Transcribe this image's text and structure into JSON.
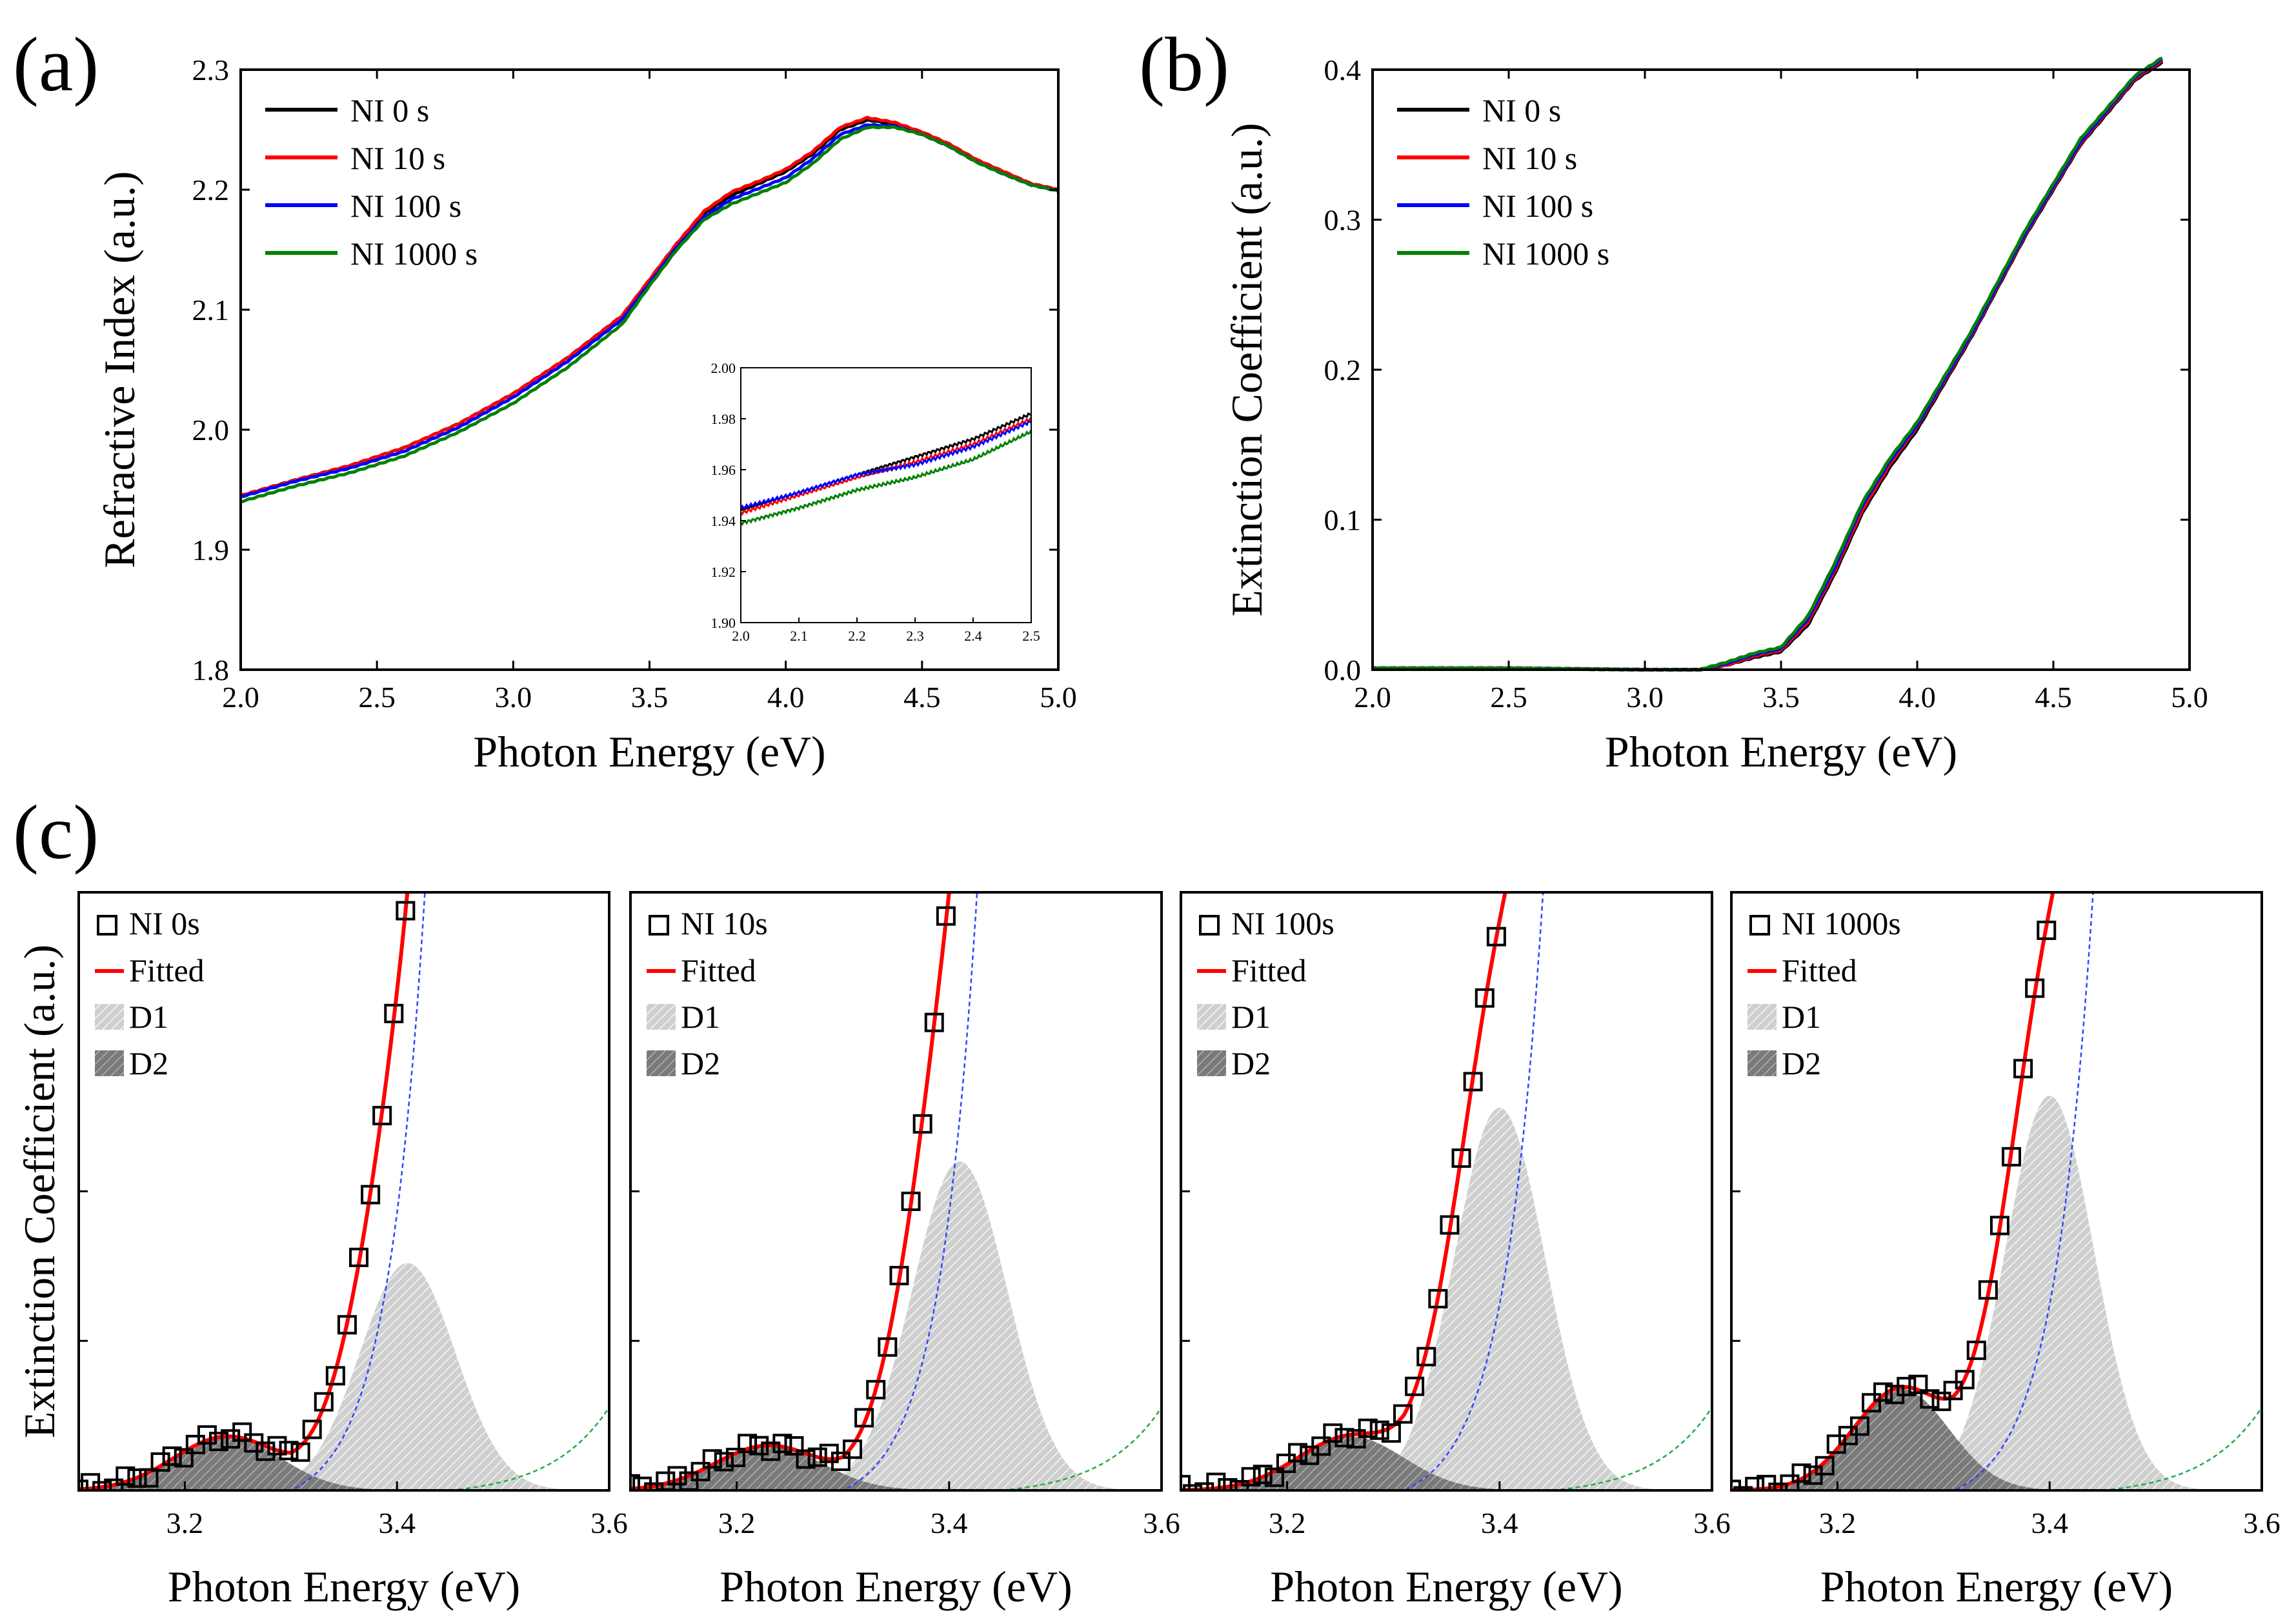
{
  "chart_data": [
    {
      "panel": "(a)",
      "type": "line",
      "xlabel": "Photon Energy (eV)",
      "ylabel": "Refractive Index (a.u.)",
      "xlim": [
        2.0,
        5.0
      ],
      "ylim": [
        1.8,
        2.3
      ],
      "xticks": [
        "2.0",
        "2.5",
        "3.0",
        "3.5",
        "4.0",
        "4.5",
        "5.0"
      ],
      "yticks": [
        "1.8",
        "1.9",
        "2.0",
        "2.1",
        "2.2",
        "2.3"
      ],
      "legend_position": "top-left",
      "series": [
        {
          "name": "NI 0 s",
          "color": "#000000",
          "x": [
            2.0,
            2.2,
            2.4,
            2.6,
            2.8,
            3.0,
            3.2,
            3.4,
            3.5,
            3.6,
            3.7,
            3.8,
            3.9,
            4.0,
            4.1,
            4.2,
            4.3,
            4.4,
            4.5,
            4.6,
            4.7,
            4.8,
            4.9,
            5.0
          ],
          "y": [
            1.945,
            1.958,
            1.97,
            1.985,
            2.005,
            2.03,
            2.06,
            2.095,
            2.125,
            2.155,
            2.18,
            2.195,
            2.205,
            2.215,
            2.23,
            2.25,
            2.258,
            2.255,
            2.248,
            2.238,
            2.225,
            2.215,
            2.205,
            2.2
          ]
        },
        {
          "name": "NI 10 s",
          "color": "#ff0000",
          "x": [
            2.0,
            2.2,
            2.4,
            2.6,
            2.8,
            3.0,
            3.2,
            3.4,
            3.5,
            3.6,
            3.7,
            3.8,
            3.9,
            4.0,
            4.1,
            4.2,
            4.3,
            4.4,
            4.5,
            4.6,
            4.7,
            4.8,
            4.9,
            5.0
          ],
          "y": [
            1.945,
            1.958,
            1.97,
            1.985,
            2.005,
            2.03,
            2.06,
            2.095,
            2.125,
            2.155,
            2.182,
            2.198,
            2.207,
            2.217,
            2.232,
            2.252,
            2.26,
            2.256,
            2.248,
            2.238,
            2.225,
            2.215,
            2.205,
            2.2
          ]
        },
        {
          "name": "NI 100 s",
          "color": "#0000ff",
          "x": [
            2.0,
            2.2,
            2.4,
            2.6,
            2.8,
            3.0,
            3.2,
            3.4,
            3.5,
            3.6,
            3.7,
            3.8,
            3.9,
            4.0,
            4.1,
            4.2,
            4.3,
            4.4,
            4.5,
            4.6,
            4.7,
            4.8,
            4.9,
            5.0
          ],
          "y": [
            1.944,
            1.957,
            1.968,
            1.982,
            2.002,
            2.027,
            2.057,
            2.092,
            2.122,
            2.152,
            2.177,
            2.192,
            2.201,
            2.21,
            2.226,
            2.246,
            2.254,
            2.253,
            2.246,
            2.236,
            2.223,
            2.213,
            2.204,
            2.199
          ]
        },
        {
          "name": "NI 1000 s",
          "color": "#008000",
          "x": [
            2.0,
            2.2,
            2.4,
            2.6,
            2.8,
            3.0,
            3.2,
            3.4,
            3.5,
            3.6,
            3.7,
            3.8,
            3.9,
            4.0,
            4.1,
            4.2,
            4.3,
            4.4,
            4.5,
            4.6,
            4.7,
            4.8,
            4.9,
            5.0
          ],
          "y": [
            1.94,
            1.953,
            1.964,
            1.978,
            1.998,
            2.022,
            2.052,
            2.088,
            2.12,
            2.15,
            2.175,
            2.188,
            2.197,
            2.206,
            2.222,
            2.242,
            2.252,
            2.252,
            2.246,
            2.236,
            2.223,
            2.213,
            2.204,
            2.199
          ]
        }
      ],
      "inset": {
        "type": "line",
        "xlim": [
          2.0,
          2.5
        ],
        "ylim": [
          1.9,
          2.0
        ],
        "xticks": [
          "2.0",
          "2.1",
          "2.2",
          "2.3",
          "2.4",
          "2.5"
        ],
        "yticks": [
          "1.90",
          "1.92",
          "1.94",
          "1.96",
          "1.98",
          "2.00"
        ],
        "series": [
          {
            "name": "NI 0 s",
            "color": "#000000",
            "x": [
              2.0,
              2.1,
              2.2,
              2.3,
              2.4,
              2.5
            ],
            "y": [
              1.944,
              1.951,
              1.958,
              1.965,
              1.972,
              1.982
            ]
          },
          {
            "name": "NI 10 s",
            "color": "#ff0000",
            "x": [
              2.0,
              2.1,
              2.2,
              2.3,
              2.4,
              2.5
            ],
            "y": [
              1.943,
              1.95,
              1.957,
              1.963,
              1.97,
              1.98
            ]
          },
          {
            "name": "NI 100 s",
            "color": "#0000ff",
            "x": [
              2.0,
              2.1,
              2.2,
              2.3,
              2.4,
              2.5
            ],
            "y": [
              1.945,
              1.951,
              1.958,
              1.962,
              1.969,
              1.979
            ]
          },
          {
            "name": "NI 1000 s",
            "color": "#008000",
            "x": [
              2.0,
              2.1,
              2.2,
              2.3,
              2.4,
              2.5
            ],
            "y": [
              1.939,
              1.945,
              1.952,
              1.957,
              1.964,
              1.975
            ]
          }
        ]
      }
    },
    {
      "panel": "(b)",
      "type": "line",
      "xlabel": "Photon Energy (eV)",
      "ylabel": "Extinction Coefficient (a.u.)",
      "xlim": [
        2.0,
        5.0
      ],
      "ylim": [
        0.0,
        0.4
      ],
      "xticks": [
        "2.0",
        "2.5",
        "3.0",
        "3.5",
        "4.0",
        "4.5",
        "5.0"
      ],
      "yticks": [
        "0.0",
        "0.1",
        "0.2",
        "0.3",
        "0.4"
      ],
      "legend_position": "top-left",
      "series": [
        {
          "name": "NI 0 s",
          "color": "#000000",
          "x": [
            2.0,
            2.5,
            3.0,
            3.2,
            3.3,
            3.4,
            3.5,
            3.6,
            3.7,
            3.8,
            3.9,
            4.0,
            4.2,
            4.4,
            4.6,
            4.8,
            4.9
          ],
          "y": [
            0.001,
            0.001,
            0.0,
            0.0,
            0.003,
            0.008,
            0.012,
            0.03,
            0.065,
            0.105,
            0.135,
            0.16,
            0.222,
            0.29,
            0.35,
            0.393,
            0.405
          ]
        },
        {
          "name": "NI 10 s",
          "color": "#ff0000",
          "x": [
            2.0,
            2.5,
            3.0,
            3.2,
            3.3,
            3.4,
            3.5,
            3.6,
            3.7,
            3.8,
            3.9,
            4.0,
            4.2,
            4.4,
            4.6,
            4.8,
            4.9
          ],
          "y": [
            0.001,
            0.001,
            0.0,
            0.0,
            0.003,
            0.009,
            0.013,
            0.032,
            0.067,
            0.107,
            0.137,
            0.162,
            0.223,
            0.291,
            0.351,
            0.394,
            0.406
          ]
        },
        {
          "name": "NI 100 s",
          "color": "#0000ff",
          "x": [
            2.0,
            2.5,
            3.0,
            3.2,
            3.3,
            3.4,
            3.5,
            3.6,
            3.7,
            3.8,
            3.9,
            4.0,
            4.2,
            4.4,
            4.6,
            4.8,
            4.9
          ],
          "y": [
            0.001,
            0.001,
            0.0,
            0.0,
            0.004,
            0.01,
            0.014,
            0.034,
            0.069,
            0.11,
            0.139,
            0.163,
            0.224,
            0.292,
            0.352,
            0.395,
            0.407
          ]
        },
        {
          "name": "NI 1000 s",
          "color": "#008000",
          "x": [
            2.0,
            2.5,
            3.0,
            3.2,
            3.3,
            3.4,
            3.5,
            3.6,
            3.7,
            3.8,
            3.9,
            4.0,
            4.2,
            4.4,
            4.6,
            4.8,
            4.9
          ],
          "y": [
            0.001,
            0.001,
            0.0,
            0.0,
            0.005,
            0.011,
            0.015,
            0.036,
            0.072,
            0.112,
            0.141,
            0.165,
            0.226,
            0.294,
            0.354,
            0.396,
            0.408
          ]
        }
      ]
    },
    {
      "panel": "(c)",
      "type": "scatter",
      "xlabel": "Photon Energy (eV)",
      "ylabel": "Extinction Coefficient (a.u.)",
      "xlim": [
        3.1,
        3.6
      ],
      "xticks": [
        "3.2",
        "3.4",
        "3.6"
      ],
      "legend_labels": {
        "fitted": "Fitted",
        "d1": "D1",
        "d2": "D2"
      },
      "colors": {
        "fitted": "#ff0000",
        "d1": "#c8c8c8",
        "d2": "#6e6e6e",
        "background_blue": "#3344ff",
        "background_green": "#22aa44"
      },
      "subplots": [
        {
          "name": "NI 0s",
          "d1": {
            "center": 3.41,
            "amp": 0.38,
            "sigma": 0.045
          },
          "d2": {
            "center": 3.24,
            "amp": 0.09,
            "sigma": 0.05
          },
          "bg": {
            "a": 0.03,
            "k": 28,
            "x0": 3.3
          }
        },
        {
          "name": "NI 10s",
          "d1": {
            "center": 3.41,
            "amp": 0.55,
            "sigma": 0.045
          },
          "d2": {
            "center": 3.23,
            "amp": 0.075,
            "sigma": 0.05
          },
          "bg": {
            "a": 0.03,
            "k": 28,
            "x0": 3.3
          }
        },
        {
          "name": "NI 100s",
          "d1": {
            "center": 3.4,
            "amp": 0.64,
            "sigma": 0.043
          },
          "d2": {
            "center": 3.26,
            "amp": 0.09,
            "sigma": 0.05
          },
          "bg": {
            "a": 0.03,
            "k": 27,
            "x0": 3.31
          }
        },
        {
          "name": "NI 1000s",
          "d1": {
            "center": 3.4,
            "amp": 0.66,
            "sigma": 0.042
          },
          "d2": {
            "center": 3.26,
            "amp": 0.17,
            "sigma": 0.045
          },
          "bg": {
            "a": 0.03,
            "k": 27,
            "x0": 3.31
          }
        }
      ]
    }
  ],
  "labels": {
    "panel_a": "(a)",
    "panel_b": "(b)",
    "panel_c": "(c)",
    "xlabel": "Photon Energy (eV)",
    "ylabel_a": "Refractive Index (a.u.)",
    "ylabel_b": "Extinction Coefficient (a.u.)",
    "ylabel_c": "Extinction Coefficient (a.u.)"
  }
}
